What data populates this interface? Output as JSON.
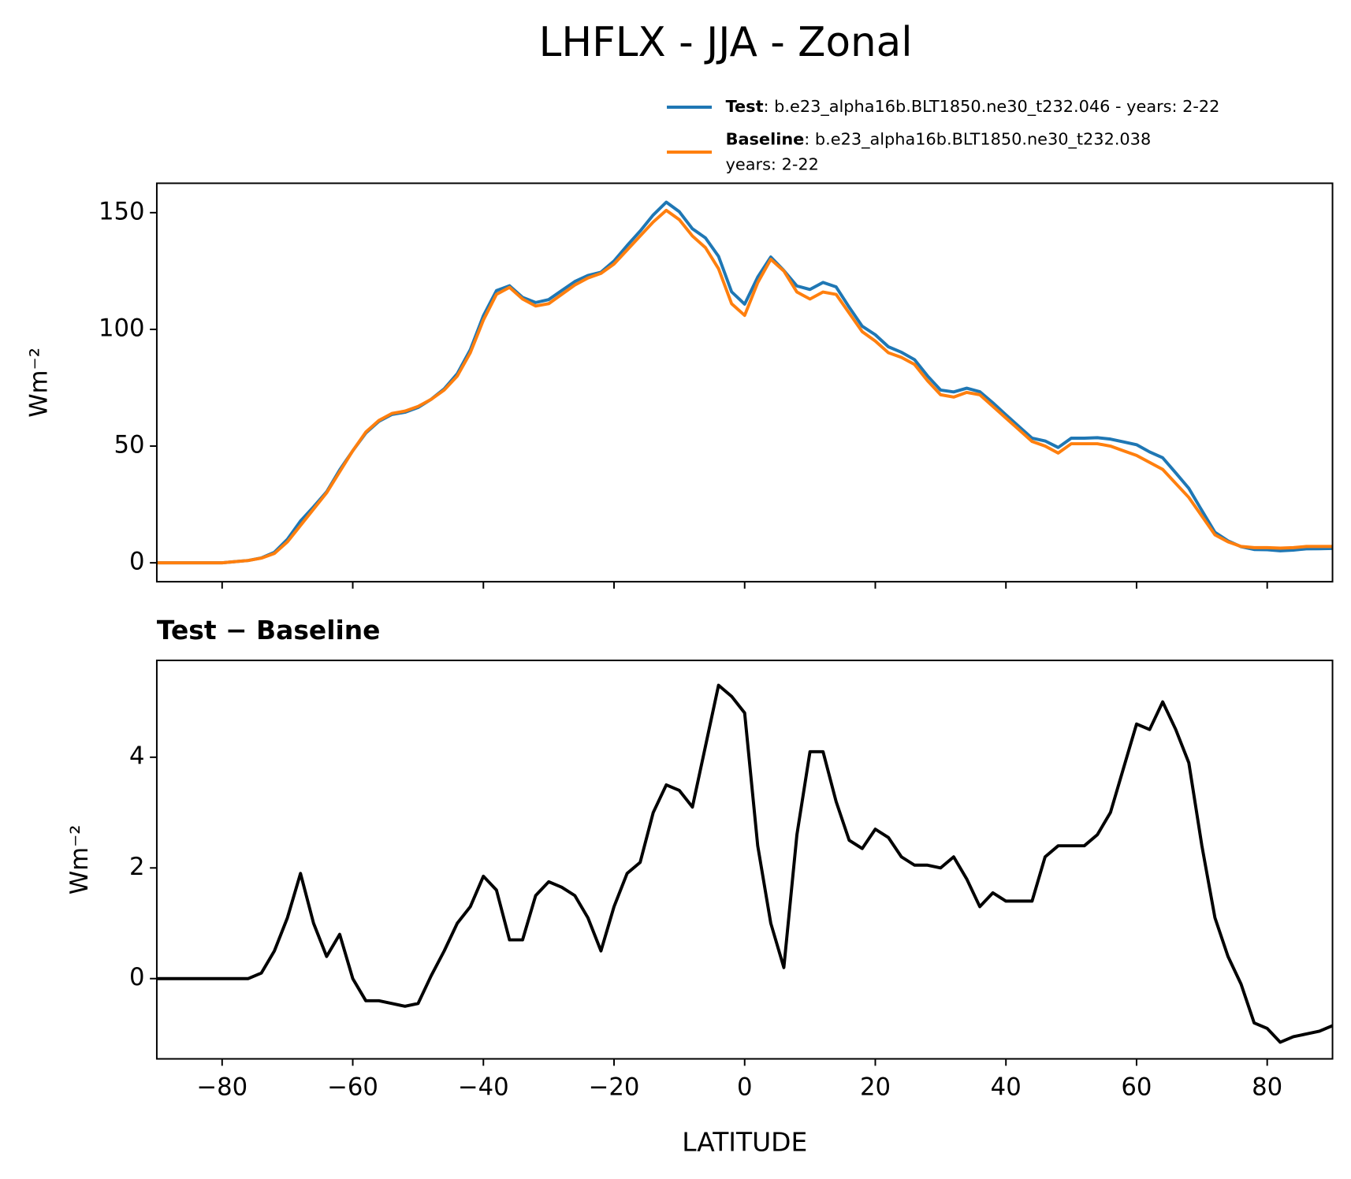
{
  "chart_data": [
    {
      "type": "line",
      "title": "LHFLX - JJA - Zonal",
      "ylabel": "Wm⁻²",
      "legend": "upper right",
      "sharex": true,
      "x": [
        -90,
        -88,
        -86,
        -84,
        -82,
        -80,
        -78,
        -76,
        -74,
        -72,
        -70,
        -68,
        -66,
        -64,
        -62,
        -60,
        -58,
        -56,
        -54,
        -52,
        -50,
        -48,
        -46,
        -44,
        -42,
        -40,
        -38,
        -36,
        -34,
        -32,
        -30,
        -28,
        -26,
        -24,
        -22,
        -20,
        -18,
        -16,
        -14,
        -12,
        -10,
        -8,
        -6,
        -4,
        -2,
        0,
        2,
        4,
        6,
        8,
        10,
        12,
        14,
        16,
        18,
        20,
        22,
        24,
        26,
        28,
        30,
        32,
        34,
        36,
        38,
        40,
        42,
        44,
        46,
        48,
        50,
        52,
        54,
        56,
        58,
        60,
        62,
        64,
        66,
        68,
        70,
        72,
        74,
        76,
        78,
        80,
        82,
        84,
        86,
        88,
        90
      ],
      "xlim": [
        -90,
        90
      ],
      "xticks": [
        {
          "value": -80,
          "label": "−80"
        },
        {
          "value": -60,
          "label": "−60"
        },
        {
          "value": -40,
          "label": "−40"
        },
        {
          "value": -20,
          "label": "−20"
        },
        0,
        20,
        40,
        60,
        80
      ],
      "ylim": [
        -8.1,
        162.6
      ],
      "yticks": [
        0,
        50,
        100,
        150
      ],
      "series": [
        {
          "name": "Test",
          "detail": [
            ": b.e23_alpha16b.BLT1850.ne30_t232.046 - years: 2-22"
          ],
          "color": "#1f77b4",
          "values": [
            0,
            0,
            0,
            0,
            0,
            0,
            0.5,
            1,
            2.1,
            4.5,
            10.1,
            17.9,
            24,
            30.4,
            39.8,
            48,
            55.6,
            60.6,
            63.55,
            64.5,
            66.55,
            70.05,
            74.5,
            81,
            91.3,
            105.85,
            116.6,
            118.7,
            113.7,
            111.5,
            112.75,
            116.65,
            120.5,
            123.1,
            124.5,
            129.3,
            135.9,
            142.1,
            149,
            154.5,
            150.4,
            143.1,
            139.2,
            131.3,
            116.1,
            110.8,
            122.4,
            131,
            125.2,
            118.6,
            117.1,
            120.1,
            118.2,
            109.5,
            101.35,
            97.7,
            92.55,
            90.2,
            87.05,
            80.05,
            74,
            73.2,
            74.8,
            73.3,
            68.55,
            63.4,
            58.4,
            53.4,
            52.2,
            49.4,
            53.4,
            53.4,
            53.6,
            53,
            51.8,
            50.6,
            47.5,
            45,
            38.5,
            31.9,
            22.4,
            13.1,
            9.4,
            6.9,
            5.7,
            5.6,
            5.15,
            5.45,
            6,
            6.05,
            6.15
          ]
        },
        {
          "name": "Baseline",
          "detail": [
            ": b.e23_alpha16b.BLT1850.ne30_t232.038",
            "years: 2-22"
          ],
          "color": "#ff7f0e",
          "values": [
            0,
            0,
            0,
            0,
            0,
            0,
            0.5,
            1,
            2,
            4,
            9,
            16,
            23,
            30,
            39,
            48,
            56,
            61,
            64,
            65,
            67,
            70,
            74,
            80,
            90,
            104,
            115,
            118,
            113,
            110,
            111,
            115,
            119,
            122,
            124,
            128,
            134,
            140,
            146,
            151,
            147,
            140,
            135,
            126,
            111,
            106,
            120,
            130,
            125,
            116,
            113,
            116,
            115,
            107,
            99,
            95,
            90,
            88,
            85,
            78,
            72,
            71,
            73,
            72,
            67,
            62,
            57,
            52,
            50,
            47,
            51,
            51,
            51,
            50,
            48,
            46,
            43,
            40,
            34,
            28,
            20,
            12,
            9,
            7,
            6.5,
            6.5,
            6.3,
            6.5,
            7,
            7,
            7
          ]
        }
      ]
    },
    {
      "type": "line",
      "title": "Test − Baseline",
      "ylabel": "Wm⁻²",
      "xlabel": "LATITUDE",
      "x": [
        -90,
        -88,
        -86,
        -84,
        -82,
        -80,
        -78,
        -76,
        -74,
        -72,
        -70,
        -68,
        -66,
        -64,
        -62,
        -60,
        -58,
        -56,
        -54,
        -52,
        -50,
        -48,
        -46,
        -44,
        -42,
        -40,
        -38,
        -36,
        -34,
        -32,
        -30,
        -28,
        -26,
        -24,
        -22,
        -20,
        -18,
        -16,
        -14,
        -12,
        -10,
        -8,
        -6,
        -4,
        -2,
        0,
        2,
        4,
        6,
        8,
        10,
        12,
        14,
        16,
        18,
        20,
        22,
        24,
        26,
        28,
        30,
        32,
        34,
        36,
        38,
        40,
        42,
        44,
        46,
        48,
        50,
        52,
        54,
        56,
        58,
        60,
        62,
        64,
        66,
        68,
        70,
        72,
        74,
        76,
        78,
        80,
        82,
        84,
        86,
        88,
        90
      ],
      "xlim": [
        -90,
        90
      ],
      "xticks": [
        {
          "value": -80,
          "label": "−80"
        },
        {
          "value": -60,
          "label": "−60"
        },
        {
          "value": -40,
          "label": "−40"
        },
        {
          "value": -20,
          "label": "−20"
        },
        0,
        20,
        40,
        60,
        80
      ],
      "ylim": [
        -1.45,
        5.75
      ],
      "yticks": [
        0,
        2,
        4
      ],
      "series": [
        {
          "color": "#000000",
          "values": [
            0,
            0,
            0,
            0,
            0,
            0,
            0,
            0,
            0.1,
            0.5,
            1.1,
            1.9,
            1.0,
            0.4,
            0.8,
            0.0,
            -0.4,
            -0.4,
            -0.45,
            -0.5,
            -0.45,
            0.05,
            0.5,
            1.0,
            1.3,
            1.85,
            1.6,
            0.7,
            0.7,
            1.5,
            1.75,
            1.65,
            1.5,
            1.1,
            0.5,
            1.3,
            1.9,
            2.1,
            3.0,
            3.5,
            3.4,
            3.1,
            4.2,
            5.3,
            5.1,
            4.8,
            2.4,
            1.0,
            0.2,
            2.6,
            4.1,
            4.1,
            3.2,
            2.5,
            2.35,
            2.7,
            2.55,
            2.2,
            2.05,
            2.05,
            2.0,
            2.2,
            1.8,
            1.3,
            1.55,
            1.4,
            1.4,
            1.4,
            2.2,
            2.4,
            2.4,
            2.4,
            2.6,
            3.0,
            3.8,
            4.6,
            4.5,
            5.0,
            4.5,
            3.9,
            2.4,
            1.1,
            0.4,
            -0.1,
            -0.8,
            -0.9,
            -1.15,
            -1.05,
            -1.0,
            -0.95,
            -0.85
          ]
        }
      ]
    }
  ]
}
